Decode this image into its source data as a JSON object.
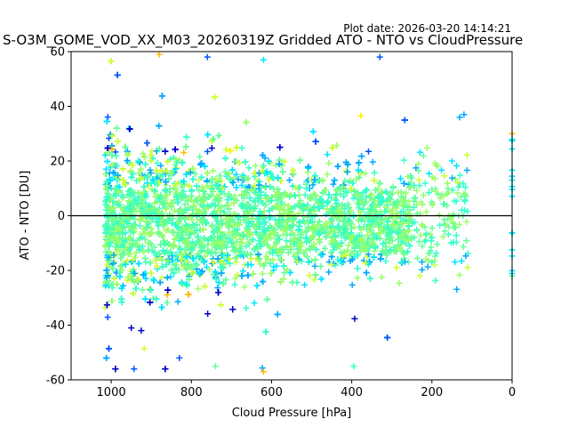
{
  "plot_date": "Plot date: 2026-03-20 14:14:21",
  "chart_data": {
    "type": "scatter",
    "title": "S-O3M_GOME_VOD_XX_M03_20260319Z Gridded ATO - NTO vs CloudPressure",
    "xlabel": "Cloud Pressure [hPa]",
    "ylabel": "ATO - NTO [DU]",
    "xlim": [
      1100,
      0
    ],
    "ylim": [
      -60,
      60
    ],
    "x_ticks": [
      1000,
      800,
      600,
      400,
      200,
      0
    ],
    "y_ticks": [
      -60,
      -40,
      -20,
      0,
      20,
      40,
      60
    ],
    "reference_line_y": 0,
    "marker": "+",
    "grid": false,
    "colors": [
      "#0000cc",
      "#0055ff",
      "#00aaff",
      "#00e5ff",
      "#33ffcc",
      "#66ff99",
      "#99ff66",
      "#ccff33",
      "#ffee00",
      "#ffbb00"
    ],
    "point_groups": [
      {
        "x_range": [
          1015,
          260
        ],
        "y_center": -2,
        "y_spread": 18,
        "density": "very dense"
      },
      {
        "x_range": [
          1010,
          700
        ],
        "y_range": [
          -42,
          38
        ],
        "density": "dense",
        "notes": "blue markers near -35 to -42 around 950-850 hPa"
      },
      {
        "x_range": [
          900,
          600
        ],
        "y_range": [
          -55,
          58
        ],
        "density": "sparse outliers"
      },
      {
        "x_range": [
          300,
          200
        ],
        "y_range": [
          -30,
          48
        ],
        "density": "sparse"
      },
      {
        "x_range": [
          200,
          110
        ],
        "y_range": [
          -17,
          37
        ],
        "density": "very sparse"
      },
      {
        "x": 0,
        "y_range": [
          -22,
          30
        ],
        "density": "few points at axis edge"
      }
    ],
    "sample_points": [
      {
        "x": 880,
        "y": 59
      },
      {
        "x": 760,
        "y": 58
      },
      {
        "x": 620,
        "y": 57
      },
      {
        "x": 330,
        "y": 58
      },
      {
        "x": 395,
        "y": -55
      },
      {
        "x": 620,
        "y": -57
      },
      {
        "x": 830,
        "y": -52
      },
      {
        "x": 740,
        "y": -55
      },
      {
        "x": 950,
        "y": -41
      },
      {
        "x": 925,
        "y": -42
      },
      {
        "x": 200,
        "y": -17
      },
      {
        "x": 230,
        "y": -22
      },
      {
        "x": 120,
        "y": 37
      },
      {
        "x": 150,
        "y": 20
      },
      {
        "x": 0,
        "y": 30
      },
      {
        "x": 0,
        "y": 13
      },
      {
        "x": 0,
        "y": -22
      }
    ]
  }
}
